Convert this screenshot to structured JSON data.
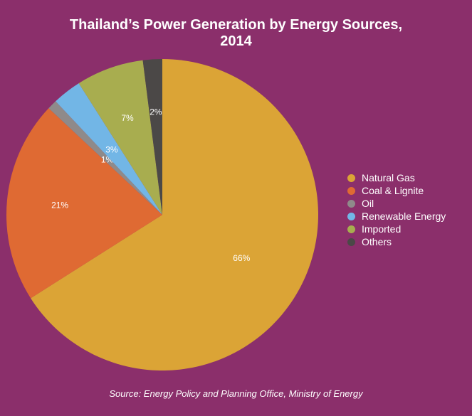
{
  "chart_data": {
    "type": "pie",
    "title_line1": "Thailand’s Power Generation by Energy Sources,",
    "title_line2": "2014",
    "labels": [
      "Natural Gas",
      "Coal & Lignite",
      "Oil",
      "Renewable Energy",
      "Imported",
      "Others"
    ],
    "values": [
      66,
      21,
      1,
      3,
      7,
      2
    ],
    "value_labels": [
      "66%",
      "21%",
      "1%",
      "3%",
      "7%",
      "2%"
    ],
    "colors": [
      "#dba436",
      "#df6a33",
      "#8f8a8a",
      "#72b6e6",
      "#a8ad4f",
      "#4b4847"
    ],
    "legend_position": "right",
    "source": "Source: Energy Policy and Planning Office, Ministry of Energy"
  }
}
